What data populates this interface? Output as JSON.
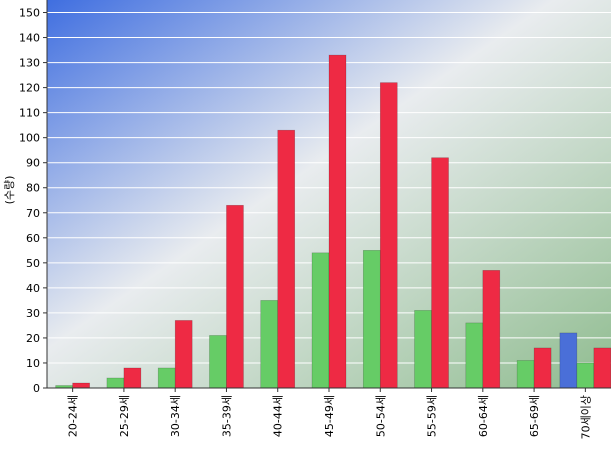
{
  "chart_data": {
    "type": "bar",
    "title": "",
    "xlabel": "",
    "ylabel": "(수량)",
    "ylim": [
      0,
      155
    ],
    "yticks": [
      0,
      10,
      20,
      30,
      40,
      50,
      60,
      70,
      80,
      90,
      100,
      110,
      120,
      130,
      140,
      150
    ],
    "grid": true,
    "legend": "none",
    "categories": [
      "20-24세",
      "25-29세",
      "30-34세",
      "35-39세",
      "40-44세",
      "45-49세",
      "50-54세",
      "55-59세",
      "60-64세",
      "65-69세",
      "70세이상"
    ],
    "series": [
      {
        "color": "#4a6fd8",
        "values": [
          0,
          0,
          0,
          0,
          0,
          0,
          0,
          0,
          0,
          0,
          22
        ]
      },
      {
        "color": "#66cc66",
        "values": [
          1,
          4,
          8,
          21,
          35,
          54,
          55,
          31,
          26,
          11,
          10
        ]
      },
      {
        "color": "#ee2a44",
        "values": [
          2,
          8,
          27,
          73,
          103,
          133,
          122,
          92,
          47,
          16,
          16
        ]
      }
    ]
  }
}
